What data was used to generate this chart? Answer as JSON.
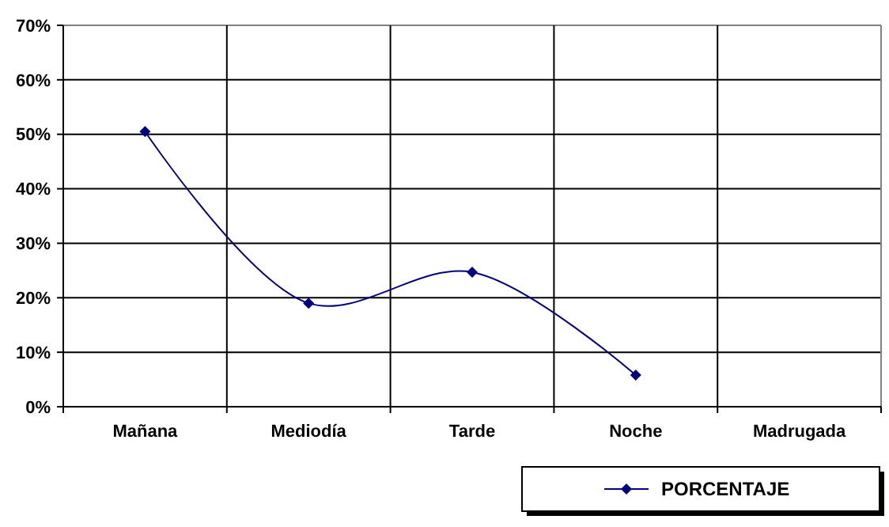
{
  "chart_data": {
    "type": "line",
    "categories": [
      "Mañana",
      "Mediodía",
      "Tarde",
      "Noche",
      "Madrugada"
    ],
    "series": [
      {
        "name": "PORCENTAJE",
        "color": "#000080",
        "values": [
          50.5,
          19,
          24.7,
          5.8,
          null
        ]
      }
    ],
    "ylim": [
      0,
      70
    ],
    "yticks": [
      {
        "value": 0,
        "label": "0%"
      },
      {
        "value": 10,
        "label": "10%"
      },
      {
        "value": 20,
        "label": "20%"
      },
      {
        "value": 30,
        "label": "30%"
      },
      {
        "value": 40,
        "label": "40%"
      },
      {
        "value": 50,
        "label": "50%"
      },
      {
        "value": 60,
        "label": "60%"
      },
      {
        "value": 70,
        "label": "70%"
      }
    ],
    "grid": true,
    "legend": "bottom right",
    "marker": "diamond",
    "line_style": "solid"
  }
}
